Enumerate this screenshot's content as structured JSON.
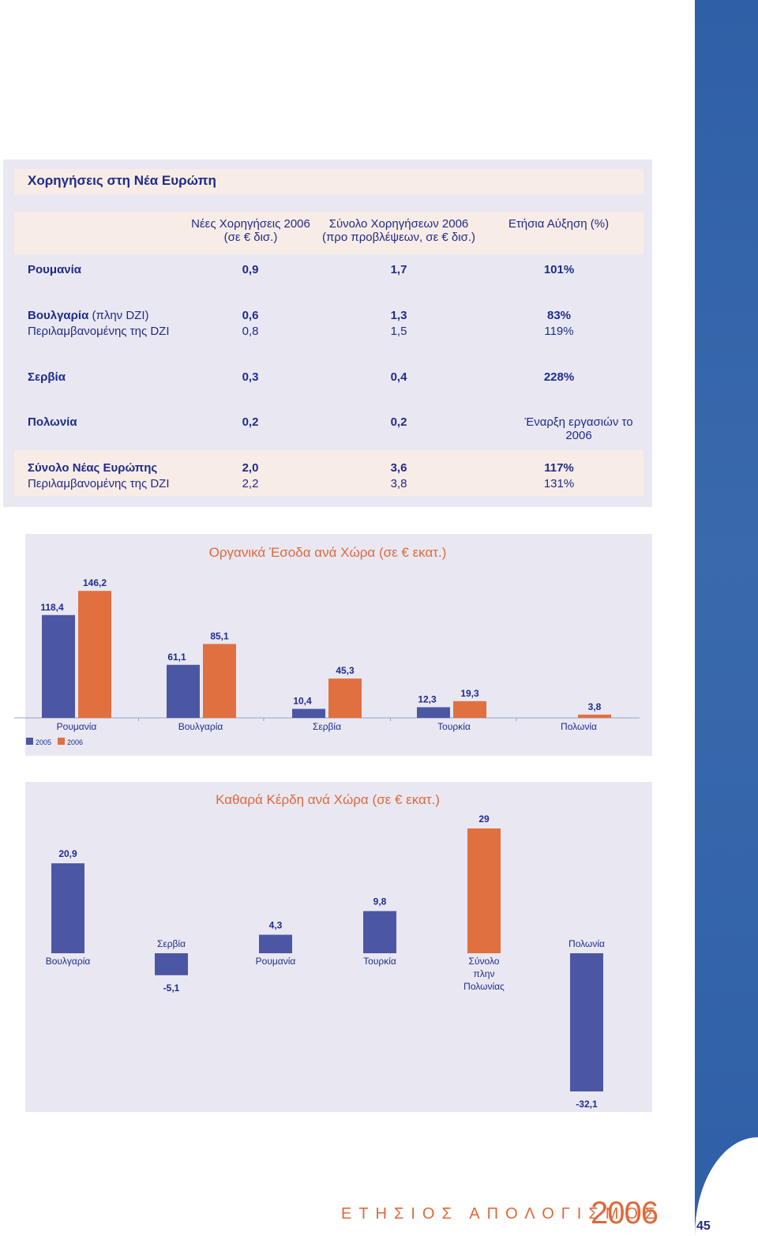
{
  "table": {
    "title": "Χορηγήσεις στη Νέα Ευρώπη",
    "columns": [
      {
        "line1": "Νέες Χορηγήσεις 2006",
        "line2": "(σε € δισ.)"
      },
      {
        "line1": "Σύνολο Χορηγήσεων 2006",
        "line2": "(προ προβλέψεων, σε € δισ.)"
      },
      {
        "line1": "Ετήσια Αύξηση (%)",
        "line2": ""
      }
    ],
    "rows": [
      {
        "label_bold": "Ρουμανία",
        "label_rest": "",
        "values": [
          "0,9",
          "1,7",
          "101%"
        ]
      },
      {
        "label_bold": "Βουλγαρία",
        "label_rest": " (πλην DZI)",
        "values": [
          "0,6",
          "1,3",
          "83%"
        ]
      },
      {
        "label_bold": "",
        "label_rest": "Περιλαμβανομένης της DZI",
        "values": [
          "0,8",
          "1,5",
          "119%"
        ]
      },
      {
        "label_bold": "Σερβία",
        "label_rest": "",
        "values": [
          "0,3",
          "0,4",
          "228%"
        ]
      },
      {
        "label_bold": "Πολωνία",
        "label_rest": "",
        "values": [
          "0,2",
          "0,2",
          "Έναρξη εργασιών το 2006"
        ]
      },
      {
        "label_bold": "Σύνολο Νέας Ευρώπης",
        "label_rest": "",
        "values": [
          "2,0",
          "3,6",
          "117%"
        ]
      },
      {
        "label_bold": "",
        "label_rest": "Περιλαμβανομένης της DZI",
        "values": [
          "2,2",
          "3,8",
          "131%"
        ]
      }
    ]
  },
  "chart_data": [
    {
      "type": "bar",
      "title": "Οργανικά Έσοδα ανά Χώρα (σε € εκατ.)",
      "categories": [
        "Ρουμανία",
        "Βουλγαρία",
        "Σερβία",
        "Τουρκία",
        "Πολωνία"
      ],
      "series": [
        {
          "name": "2005",
          "values": [
            118.4,
            61.1,
            10.4,
            12.3,
            null
          ],
          "labels": [
            "118,4",
            "61,1",
            "10,4",
            "12,3",
            ""
          ],
          "color": "#4c57a3"
        },
        {
          "name": "2006",
          "values": [
            146.2,
            85.1,
            45.3,
            19.3,
            3.8
          ],
          "labels": [
            "146,2",
            "85,1",
            "45,3",
            "19,3",
            "3,8"
          ],
          "color": "#e0703f"
        }
      ],
      "legend": "bottom-left",
      "grid": false
    },
    {
      "type": "bar",
      "title": "Καθαρά Κέρδη ανά Χώρα (σε € εκατ.)",
      "categories": [
        "Βουλγαρία",
        "Σερβία",
        "Ρουμανία",
        "Τουρκία",
        "Σύνολο πλην Πολωνίας",
        "Πολωνία"
      ],
      "values": [
        20.9,
        -5.1,
        4.3,
        9.8,
        29,
        -32.1
      ],
      "labels": [
        "20,9",
        "-5,1",
        "4,3",
        "9,8",
        "29",
        "-32,1"
      ],
      "colors": [
        "#4c57a3",
        "#4c57a3",
        "#4c57a3",
        "#4c57a3",
        "#e0703f",
        "#4c57a3"
      ],
      "grid": false
    }
  ],
  "footer": {
    "text": "ΕΤΗΣΙΟΣ ΑΠΟΛΟΓΙΣΜΟΣ",
    "year": "2006",
    "page": "45"
  }
}
